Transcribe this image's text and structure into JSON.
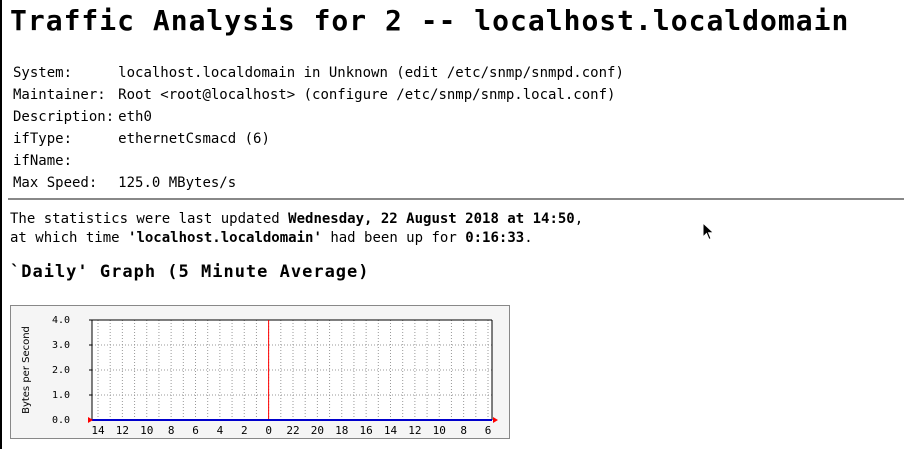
{
  "page": {
    "title": "Traffic Analysis for 2 -- localhost.localdomain"
  },
  "info": [
    {
      "key": "System:",
      "value": "localhost.localdomain in Unknown (edit /etc/snmp/snmpd.conf)"
    },
    {
      "key": "Maintainer:",
      "value": "Root <root@localhost> (configure /etc/snmp/snmp.local.conf)"
    },
    {
      "key": "Description:",
      "value": "eth0"
    },
    {
      "key": "ifType:",
      "value": "ethernetCsmacd (6)"
    },
    {
      "key": "ifName:",
      "value": ""
    },
    {
      "key": "Max Speed:",
      "value": "125.0 MBytes/s"
    }
  ],
  "stats": {
    "line1_prefix": "The statistics were last updated ",
    "updated": "Wednesday, 22 August 2018 at 14:50",
    "line1_suffix": ",",
    "line2_prefix": "at which time ",
    "host": "'localhost.localdomain'",
    "line2_mid": " had been up for ",
    "uptime": "0:16:33",
    "line2_suffix": "."
  },
  "graph": {
    "heading": "`Daily' Graph (5 Minute Average)"
  },
  "chart_data": {
    "type": "line",
    "ylabel": "Bytes per Second",
    "ylim": [
      0,
      4
    ],
    "y_ticks": [
      "0.0",
      "1.0",
      "2.0",
      "3.0",
      "4.0"
    ],
    "x_ticks": [
      "14",
      "12",
      "10",
      "8",
      "6",
      "4",
      "2",
      "0",
      "22",
      "20",
      "18",
      "16",
      "14",
      "12",
      "10",
      "8",
      "6"
    ],
    "series": [
      {
        "values": [
          0,
          0,
          0,
          0,
          0,
          0,
          0,
          0,
          0,
          0,
          0,
          0,
          0,
          0,
          0,
          0,
          0
        ],
        "color": "#0000cc"
      }
    ],
    "marker_x_label": "0",
    "colors": {
      "in": "#0000cc",
      "marker": "#ff0000",
      "grid": "#999999",
      "axis": "#000000"
    }
  }
}
